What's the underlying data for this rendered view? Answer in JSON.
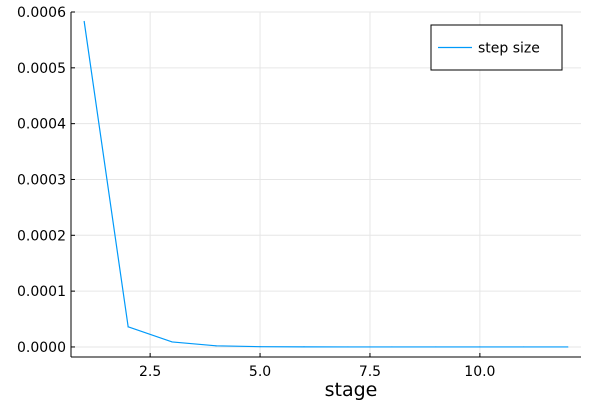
{
  "chart_data": {
    "type": "line",
    "xlabel": "stage",
    "ylabel": "",
    "xlim": [
      0.7,
      12.3
    ],
    "ylim": [
      -1.8e-05,
      0.0006
    ],
    "xticks": [
      {
        "value": 2.5,
        "label": "2.5"
      },
      {
        "value": 5.0,
        "label": "5.0"
      },
      {
        "value": 7.5,
        "label": "7.5"
      },
      {
        "value": 10.0,
        "label": "10.0"
      }
    ],
    "yticks": [
      {
        "value": 0.0,
        "label": "0.0000"
      },
      {
        "value": 0.0001,
        "label": "0.0001"
      },
      {
        "value": 0.0002,
        "label": "0.0002"
      },
      {
        "value": 0.0003,
        "label": "0.0003"
      },
      {
        "value": 0.0004,
        "label": "0.0004"
      },
      {
        "value": 0.0005,
        "label": "0.0005"
      },
      {
        "value": 0.0006,
        "label": "0.0006"
      }
    ],
    "grid": true,
    "legend_position": "top-right",
    "series": [
      {
        "name": "step size",
        "color": "#009AFA",
        "x": [
          1,
          2,
          3,
          4,
          5,
          6,
          7,
          8,
          9,
          10,
          11,
          12
        ],
        "y": [
          0.000583,
          3.6e-05,
          9e-06,
          2e-06,
          5e-07,
          1e-07,
          0.0,
          0.0,
          0.0,
          0.0,
          0.0,
          0.0
        ]
      }
    ]
  }
}
